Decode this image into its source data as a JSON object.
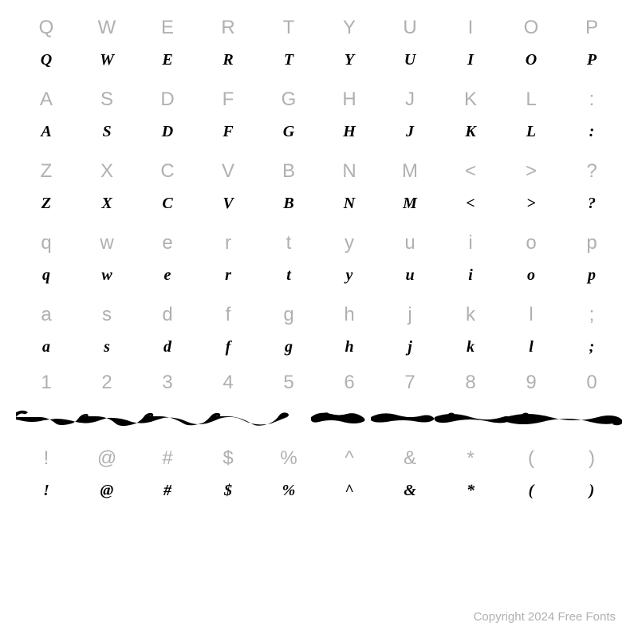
{
  "background_color": "#ffffff",
  "ref_color": "#b0b0b0",
  "font_color": "#000000",
  "ref_fontsize": 24,
  "font_fontsize": 20,
  "rows": [
    {
      "ref": [
        "Q",
        "W",
        "E",
        "R",
        "T",
        "Y",
        "U",
        "I",
        "O",
        "P"
      ],
      "font": [
        "Q",
        "W",
        "E",
        "R",
        "T",
        "Y",
        "U",
        "I",
        "O",
        "P"
      ]
    },
    {
      "ref": [
        "A",
        "S",
        "D",
        "F",
        "G",
        "H",
        "J",
        "K",
        "L",
        ":"
      ],
      "font": [
        "A",
        "S",
        "D",
        "F",
        "G",
        "H",
        "J",
        "K",
        "L",
        ":"
      ]
    },
    {
      "ref": [
        "Z",
        "X",
        "C",
        "V",
        "B",
        "N",
        "M",
        "<",
        ">",
        "?"
      ],
      "font": [
        "Z",
        "X",
        "C",
        "V",
        "B",
        "N",
        "M",
        "<",
        ">",
        "?"
      ]
    },
    {
      "ref": [
        "q",
        "w",
        "e",
        "r",
        "t",
        "y",
        "u",
        "i",
        "o",
        "p"
      ],
      "font": [
        "q",
        "w",
        "e",
        "r",
        "t",
        "y",
        "u",
        "i",
        "o",
        "p"
      ]
    },
    {
      "ref": [
        "a",
        "s",
        "d",
        "f",
        "g",
        "h",
        "j",
        "k",
        "l",
        ";"
      ],
      "font": [
        "a",
        "s",
        "d",
        "f",
        "g",
        "h",
        "j",
        "k",
        "l",
        ";"
      ]
    }
  ],
  "number_row": {
    "ref": [
      "1",
      "2",
      "3",
      "4",
      "5",
      "6",
      "7",
      "8",
      "9",
      "0"
    ]
  },
  "symbol_row": {
    "ref": [
      "!",
      "@",
      "#",
      "$",
      "%",
      "^",
      "&",
      "*",
      "(",
      ")"
    ],
    "font": [
      "!",
      "@",
      "#",
      "$",
      "%",
      "^",
      "&",
      "*",
      "(",
      ")"
    ]
  },
  "copyright": "Copyright 2024 Free Fonts",
  "swash_color": "#000000"
}
